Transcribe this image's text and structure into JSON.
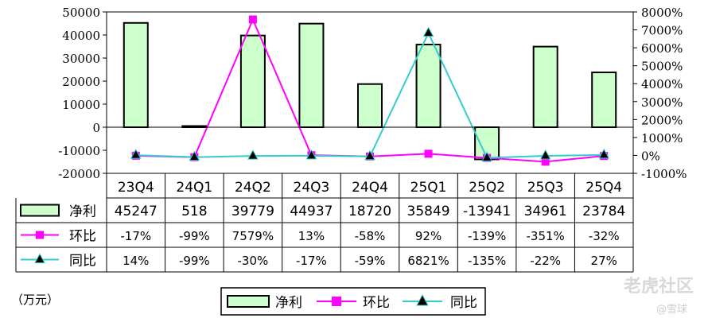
{
  "chart_data": {
    "type": "bar",
    "categories": [
      "23Q4",
      "24Q1",
      "24Q2",
      "24Q3",
      "24Q4",
      "25Q1",
      "25Q2",
      "25Q3",
      "25Q4"
    ],
    "series": [
      {
        "name": "净利",
        "kind": "bar",
        "axis": "left",
        "color": "#ccffcc",
        "values": [
          45247,
          518,
          39779,
          44937,
          18720,
          35849,
          -13941,
          34961,
          23784
        ]
      },
      {
        "name": "环比",
        "kind": "line",
        "axis": "right",
        "color": "#ff00ff",
        "marker": "square",
        "values": [
          -17,
          -99,
          7579,
          13,
          -58,
          92,
          -139,
          -351,
          -32
        ],
        "labels": [
          "-17%",
          "-99%",
          "7579%",
          "13%",
          "-58%",
          "92%",
          "-139%",
          "-351%",
          "-32%"
        ]
      },
      {
        "name": "同比",
        "kind": "line",
        "axis": "right",
        "color": "#33cccc",
        "marker": "triangle",
        "values": [
          14,
          -99,
          -30,
          -17,
          -59,
          6821,
          -135,
          -22,
          27
        ],
        "labels": [
          "14%",
          "-99%",
          "-30%",
          "-17%",
          "-59%",
          "6821%",
          "-135%",
          "-22%",
          "27%"
        ]
      }
    ],
    "y_left": {
      "min": -20000,
      "max": 50000,
      "ticks": [
        "50000",
        "40000",
        "30000",
        "20000",
        "10000",
        "0",
        "-10000",
        "-20000"
      ]
    },
    "y_right": {
      "min": -1000,
      "max": 8000,
      "ticks": [
        "8000%",
        "7000%",
        "6000%",
        "5000%",
        "4000%",
        "3000%",
        "2000%",
        "1000%",
        "0%",
        "-1000%"
      ]
    },
    "unit_label": "（万元）",
    "legend": [
      "净利",
      "环比",
      "同比"
    ],
    "legend_position": "bottom",
    "grid": false
  },
  "watermark": {
    "brand": "老虎社区",
    "author": "@雪球"
  }
}
